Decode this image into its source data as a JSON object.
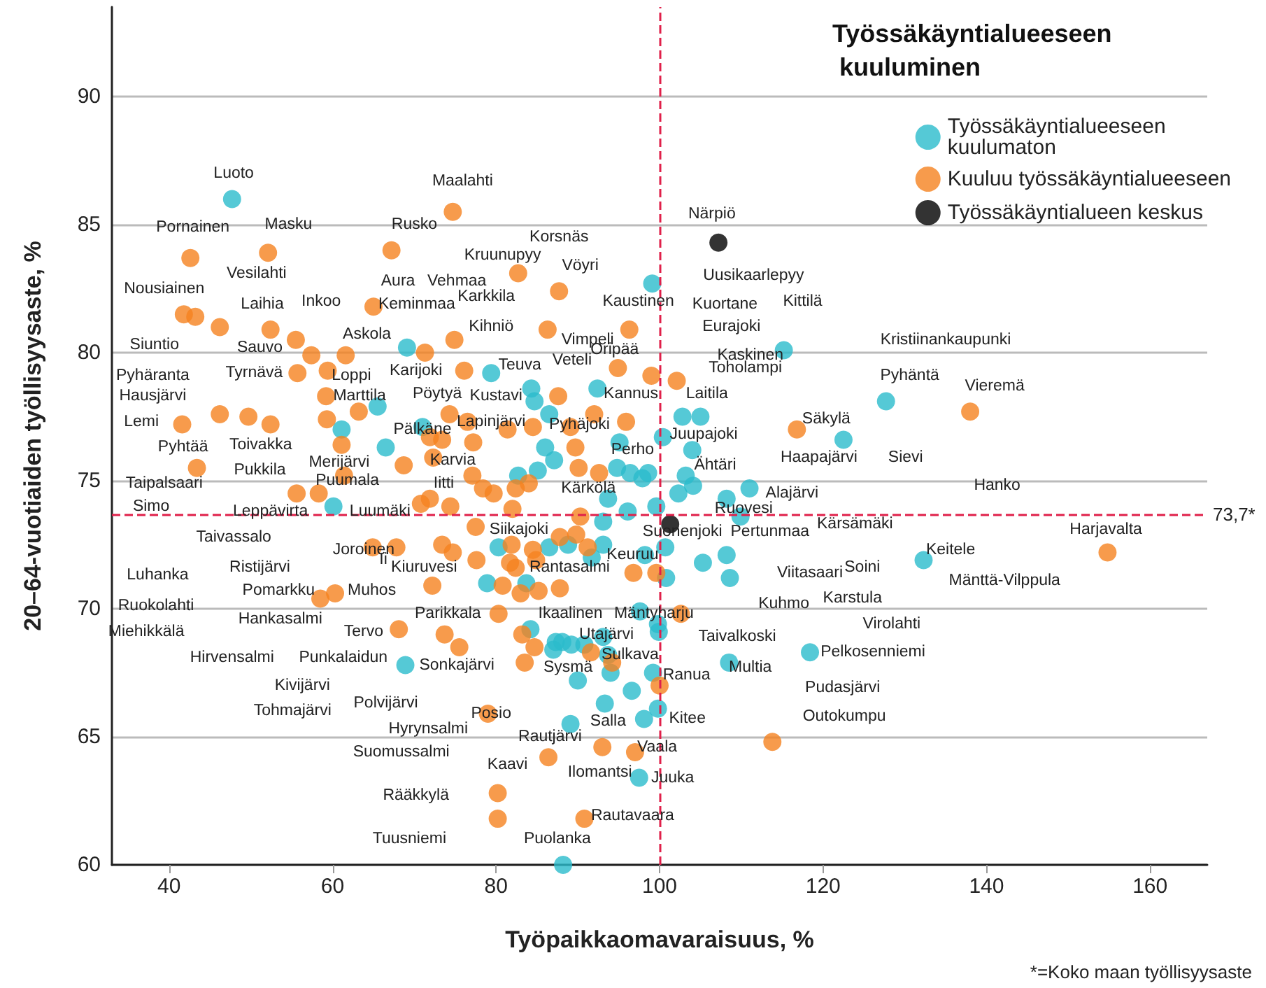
{
  "chart_data": {
    "type": "scatter",
    "xlabel": "Työpaikkaomavaraisuus, %",
    "ylabel": "20–64-vuotiaiden työllisyysaste, %",
    "legend_title": "Työssäkäyntialueeseen kuuluminen",
    "legend": "top right",
    "grid": "y",
    "marker": "circle",
    "xlim": [
      33,
      167
    ],
    "xticks": [
      40,
      60,
      80,
      100,
      120,
      140,
      160
    ],
    "ylim": [
      60,
      93.5
    ],
    "yticks": [
      60,
      65,
      70,
      75,
      80,
      85,
      90
    ],
    "series": [
      {
        "name": "Työssäkäyntialueeseen kuulumaton",
        "color": "#2bbccc",
        "x": [
          47.7,
          69.1,
          79.4,
          65.5,
          61.1,
          71.0,
          66.5,
          60.1,
          80.3,
          78.9,
          68.9,
          99.1,
          115.2,
          84.3,
          84.7,
          92.4,
          86.5,
          102.8,
          105.0,
          122.5,
          100.4,
          95.1,
          104.0,
          86.0,
          87.1,
          94.8,
          96.4,
          97.9,
          98.6,
          103.2,
          111.0,
          82.7,
          85.1,
          102.3,
          104.1,
          108.2,
          93.7,
          96.1,
          99.6,
          93.1,
          109.9,
          86.5,
          88.8,
          93.1,
          91.7,
          98.2,
          100.7,
          105.3,
          108.2,
          100.8,
          108.6,
          83.7,
          97.6,
          84.2,
          87.3,
          88.1,
          89.2,
          90.8,
          87.0,
          93.1,
          93.7,
          94.0,
          99.8,
          99.9,
          99.2,
          108.5,
          118.4,
          90.0,
          96.6,
          93.3,
          99.8,
          89.1,
          98.1,
          97.5,
          88.2,
          127.7,
          132.3
        ],
        "values": [
          86.0,
          80.2,
          79.2,
          77.9,
          77.0,
          77.1,
          76.3,
          74.0,
          72.4,
          71.0,
          67.8,
          82.7,
          80.1,
          78.6,
          78.1,
          78.6,
          77.6,
          77.5,
          77.5,
          76.6,
          76.7,
          76.5,
          76.2,
          76.3,
          75.8,
          75.5,
          75.3,
          75.1,
          75.3,
          75.2,
          74.7,
          75.2,
          75.4,
          74.5,
          74.8,
          74.3,
          74.3,
          73.8,
          74.0,
          73.4,
          73.6,
          72.4,
          72.5,
          72.5,
          72.0,
          72.1,
          72.4,
          71.8,
          72.1,
          71.2,
          71.2,
          71.0,
          69.9,
          69.2,
          68.7,
          68.7,
          68.6,
          68.6,
          68.4,
          68.9,
          68.2,
          67.5,
          69.4,
          69.1,
          67.5,
          67.9,
          68.3,
          67.2,
          66.8,
          66.3,
          66.1,
          65.5,
          65.7,
          63.4,
          60.0,
          78.1,
          71.9
        ]
      },
      {
        "name": "Kuuluu työssäkäyntialueeseen",
        "color": "#f5821f",
        "x": [
          74.7,
          42.6,
          52.1,
          67.2,
          41.8,
          43.2,
          46.2,
          52.4,
          65.0,
          55.5,
          57.4,
          61.6,
          71.3,
          74.9,
          55.7,
          59.4,
          76.1,
          59.2,
          63.2,
          46.2,
          49.7,
          52.4,
          41.6,
          59.3,
          74.3,
          76.5,
          77.2,
          71.9,
          73.4,
          61.1,
          68.7,
          72.3,
          43.4,
          61.4,
          77.1,
          78.4,
          79.7,
          55.6,
          58.3,
          71.9,
          70.8,
          74.4,
          77.5,
          64.9,
          67.8,
          73.4,
          74.7,
          77.6,
          72.2,
          60.3,
          58.5,
          80.3,
          68.1,
          73.7,
          75.5,
          79.0,
          80.2,
          80.2,
          82.7,
          87.7,
          86.3,
          96.3,
          94.9,
          99.0,
          102.1,
          87.6,
          92.0,
          81.4,
          84.5,
          89.1,
          95.9,
          116.8,
          89.7,
          90.1,
          92.6,
          82.4,
          84.0,
          82.0,
          90.3,
          81.9,
          84.5,
          87.8,
          89.8,
          91.2,
          81.7,
          82.4,
          84.9,
          96.8,
          99.6,
          80.8,
          83.0,
          85.2,
          87.8,
          102.6,
          83.2,
          84.7,
          91.6,
          94.2,
          100.0,
          83.5,
          113.8,
          93.0,
          97.0,
          86.4,
          90.8,
          138.0,
          154.8
        ],
        "values": [
          85.5,
          83.7,
          83.9,
          84.0,
          81.5,
          81.4,
          81.0,
          80.9,
          81.8,
          80.5,
          79.9,
          79.9,
          80.0,
          80.5,
          79.2,
          79.3,
          79.3,
          78.3,
          77.7,
          77.6,
          77.5,
          77.2,
          77.2,
          77.4,
          77.6,
          77.3,
          76.5,
          76.7,
          76.6,
          76.4,
          75.6,
          75.9,
          75.5,
          75.2,
          75.2,
          74.7,
          74.5,
          74.5,
          74.5,
          74.3,
          74.1,
          74.0,
          73.2,
          72.4,
          72.4,
          72.5,
          72.2,
          71.9,
          70.9,
          70.6,
          70.4,
          69.8,
          69.2,
          69.0,
          68.5,
          65.9,
          62.8,
          61.8,
          83.1,
          82.4,
          80.9,
          80.9,
          79.4,
          79.1,
          78.9,
          78.3,
          77.6,
          77.0,
          77.1,
          77.1,
          77.3,
          77.0,
          76.3,
          75.5,
          75.3,
          74.7,
          74.9,
          73.9,
          73.6,
          72.5,
          72.3,
          72.8,
          72.9,
          72.4,
          71.8,
          71.6,
          71.9,
          71.4,
          71.4,
          70.9,
          70.6,
          70.7,
          70.8,
          69.8,
          69.0,
          68.5,
          68.3,
          67.9,
          67.0,
          67.9,
          64.8,
          64.6,
          64.4,
          64.2,
          61.8,
          77.7,
          72.2
        ]
      },
      {
        "name": "Työssäkäyntialueen keskus",
        "color": "#000000",
        "x": [
          107.2,
          101.3
        ],
        "values": [
          84.3,
          73.3
        ]
      }
    ],
    "ref_lines": [
      {
        "axis": "x",
        "value": 100,
        "color": "#e0204a",
        "line_style": "dashed"
      },
      {
        "axis": "y",
        "value": 73.7,
        "label": "73,7*",
        "color": "#e0204a",
        "line_style": "dashed"
      }
    ],
    "annotations": [
      "Luoto",
      "Maalahti",
      "Pornainen",
      "Masku",
      "Rusko",
      "Korsnäs",
      "Kruunupyy",
      "Närpiö",
      "Vesilahti",
      "Aura",
      "Vehmaa",
      "Vöyri",
      "Uusikaarlepyy",
      "Nousiainen",
      "Karkkila",
      "Kaustinen",
      "Kuortane",
      "Kittilä",
      "Laihia",
      "Inkoo",
      "Keminmaa",
      "Kihniö",
      "Eurajoki",
      "Vimpeli",
      "Askola",
      "Siuntio",
      "Sauvo",
      "Oripää",
      "Kaskinen",
      "Kristiinankaupunki",
      "Veteli",
      "Karijoki",
      "Pyhäranta",
      "Tyrnävä",
      "Loppi",
      "Kustavi",
      "Teuva",
      "Kannus",
      "Laitila",
      "Toholampi",
      "Pyhäntä",
      "Vieremä",
      "Hausjärvi",
      "Marttila",
      "Pöytyä",
      "Lapinjärvi",
      "Pyhäjoki",
      "Säkylä",
      "Lemi",
      "Pyhtää",
      "Toivakka",
      "Pälkäne",
      "Juupajoki",
      "Haapajärvi",
      "Sievi",
      "Merijärvi",
      "Karvia",
      "Perho",
      "Ähtäri",
      "Pukkila",
      "Taipalsaari",
      "Puumala",
      "Iitti",
      "Kärkölä",
      "Hanko",
      "Alajärvi",
      "Simo",
      "Leppävirta",
      "Luumäki",
      "Ruovesi",
      "Suonenjoki",
      "Pertunmaa",
      "Kärsämäki",
      "Siikajoki",
      "Harjavalta",
      "Taivassalo",
      "Joroinen",
      "Keuruu",
      "Rantasalmi",
      "Ristijärvi",
      "Ii",
      "Kiuruvesi",
      "Viitasaari",
      "Soini",
      "Keitele",
      "Mänttä-Vilppula",
      "Luhanka",
      "Pomarkku",
      "Muhos",
      "Ruokolahti",
      "Hankasalmi",
      "Parikkala",
      "Ikaalinen",
      "Mäntyharju",
      "Kuhmo",
      "Karstula",
      "Virolahti",
      "Miehikkälä",
      "Tervo",
      "Utajärvi",
      "Taivalkoski",
      "Pelkosenniemi",
      "Hirvensalmi",
      "Punkalaidun",
      "Sonkajärvi",
      "Sulkava",
      "Sysmä",
      "Multia",
      "Kivijärvi",
      "Ranua",
      "Pudasjärvi",
      "Tohmajärvi",
      "Polvijärvi",
      "Posio",
      "Hyrynsalmi",
      "Salla",
      "Kitee",
      "Outokumpu",
      "Suomussalmi",
      "Rautjärvi",
      "Vaala",
      "Kaavi",
      "Ilomantsi",
      "Juuka",
      "Rääkkylä",
      "Rautavaara",
      "Tuusniemi",
      "Puolanka",
      "*=Koko maan työllisyysaste"
    ]
  }
}
